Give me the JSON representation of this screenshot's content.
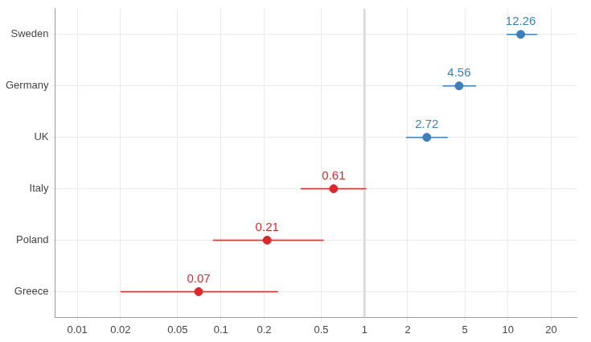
{
  "chart_data": {
    "type": "forest",
    "categories": [
      "Sweden",
      "Germany",
      "UK",
      "Italy",
      "Poland",
      "Greece"
    ],
    "values": [
      12.26,
      4.56,
      2.72,
      0.61,
      0.21,
      0.07
    ],
    "ci_low": [
      9.8,
      3.5,
      1.95,
      0.36,
      0.088,
      0.02
    ],
    "ci_high": [
      16,
      6,
      3.8,
      1.03,
      0.52,
      0.25
    ],
    "colors": [
      "#3a7fc0",
      "#3a7fc0",
      "#3a7fc0",
      "#e0262b",
      "#e0262b",
      "#e0262b"
    ],
    "reference_line": 1,
    "log": "x",
    "xlim": [
      0.007,
      30
    ],
    "xticks": [
      0.01,
      0.02,
      0.05,
      0.1,
      0.2,
      0.5,
      1,
      2,
      5,
      10,
      20
    ],
    "data_labels": true,
    "grid": true
  }
}
